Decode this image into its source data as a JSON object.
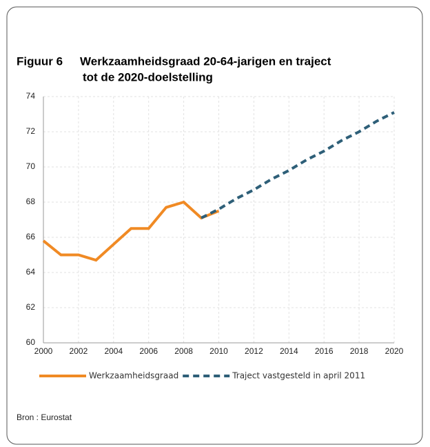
{
  "chart_data": {
    "type": "line",
    "figure_label": "Figuur 6",
    "title": [
      "Werkzaamheidsgraad 20-64-jarigen en traject",
      "tot de 2020-doelstelling"
    ],
    "x": [
      2000,
      2001,
      2002,
      2003,
      2004,
      2005,
      2006,
      2007,
      2008,
      2009,
      2010,
      2011,
      2012,
      2013,
      2014,
      2015,
      2016,
      2017,
      2018,
      2019,
      2020
    ],
    "series": [
      {
        "name": "Werkzaamheidsgraad",
        "color": "#f08a24",
        "dashed": false,
        "values": [
          65.8,
          65.0,
          65.0,
          64.7,
          65.6,
          66.5,
          66.5,
          67.7,
          68.0,
          67.1,
          67.5,
          null,
          null,
          null,
          null,
          null,
          null,
          null,
          null,
          null,
          null
        ]
      },
      {
        "name": "Traject vastgesteld in april 2011",
        "color": "#2e5f78",
        "dashed": true,
        "values": [
          null,
          null,
          null,
          null,
          null,
          null,
          null,
          null,
          null,
          67.1,
          67.6,
          68.2,
          68.7,
          69.3,
          69.8,
          70.4,
          70.9,
          71.5,
          72.0,
          72.6,
          73.1
        ]
      }
    ],
    "xlim": [
      2000,
      2020
    ],
    "xticks": [
      2000,
      2002,
      2004,
      2006,
      2008,
      2010,
      2012,
      2014,
      2016,
      2018,
      2020
    ],
    "ylim": [
      60,
      74
    ],
    "yticks": [
      60,
      62,
      64,
      66,
      68,
      70,
      72,
      74
    ],
    "grid": true,
    "legend": "bottom",
    "source": "Bron : Eurostat"
  }
}
